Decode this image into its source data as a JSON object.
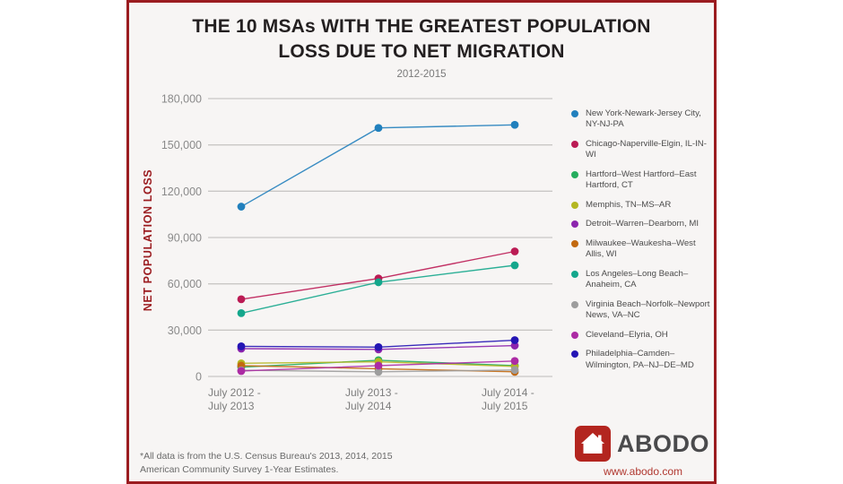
{
  "header": {
    "title_line1": "THE 10 MSAs WITH THE GREATEST POPULATION",
    "title_line2": "LOSS DUE TO NET MIGRATION",
    "subtitle": "2012-2015"
  },
  "colors": {
    "panel_background": "#f7f5f4",
    "panel_border": "#9b1c20",
    "axis_title_red": "#9b1c20",
    "gridline": "#c9c7c5",
    "tick_text": "#8a8a8a",
    "legend_text": "#4c4c4c",
    "logo_red": "#b3251f",
    "logo_gray": "#4a4a4c",
    "url_red": "#b0372f"
  },
  "chart_data": {
    "type": "line",
    "title": "THE 10 MSAs WITH THE GREATEST POPULATION LOSS DUE TO NET MIGRATION",
    "subtitle": "2012-2015",
    "ylabel": "NET POPULATION LOSS",
    "xlabel": "",
    "ylim": [
      0,
      180000
    ],
    "ytick_step": 30000,
    "ytick_labels": [
      "0",
      "30,000",
      "60,000",
      "90,000",
      "120,000",
      "150,000",
      "180,000"
    ],
    "grid": "horizontal",
    "legend_position": "right",
    "categories": [
      [
        "July 2012 -",
        "July 2013"
      ],
      [
        "July 2013 -",
        "July 2014"
      ],
      [
        "July 2014 -",
        "July 2015"
      ]
    ],
    "series": [
      {
        "name": "New York-Newark-Jersey City, NY-NJ-PA",
        "color": "#2180bd",
        "values": [
          110000,
          161000,
          163000
        ]
      },
      {
        "name": "Chicago-Naperville-Elgin, IL-IN-WI",
        "color": "#bb1b54",
        "values": [
          50000,
          63500,
          81000
        ]
      },
      {
        "name": "Hartford–West Hartford–East Hartford, CT",
        "color": "#25ad5e",
        "values": [
          6000,
          10500,
          7000
        ]
      },
      {
        "name": "Memphis, TN–MS–AR",
        "color": "#b4b722",
        "values": [
          8500,
          9500,
          6500
        ]
      },
      {
        "name": "Detroit–Warren–Dearborn, MI",
        "color": "#8c25ad",
        "values": [
          18000,
          17500,
          20000
        ]
      },
      {
        "name": "Milwaukee–Waukesha–West Allis, WI",
        "color": "#c2690f",
        "values": [
          7000,
          5000,
          3000
        ]
      },
      {
        "name": "Los Angeles–Long Beach–Anaheim, CA",
        "color": "#14a78c",
        "values": [
          41000,
          61000,
          72000
        ]
      },
      {
        "name": "Virginia Beach–Norfolk–Newport News, VA–NC",
        "color": "#9d9d9d",
        "values": [
          4000,
          3000,
          4200
        ]
      },
      {
        "name": "Cleveland–Elyria, OH",
        "color": "#ac2ba4",
        "values": [
          3500,
          7000,
          10000
        ]
      },
      {
        "name": "Philadelphia–Camden–Wilmington, PA–NJ–DE–MD",
        "color": "#2415b4",
        "values": [
          19500,
          19000,
          23500
        ]
      }
    ]
  },
  "footer": {
    "footnote_line1": "*All data is from the U.S. Census Bureau's 2013, 2014, 2015",
    "footnote_line2": " American Community Survey 1-Year Estimates.",
    "logo_text": "ABODO",
    "logo_url": "www.abodo.com"
  }
}
